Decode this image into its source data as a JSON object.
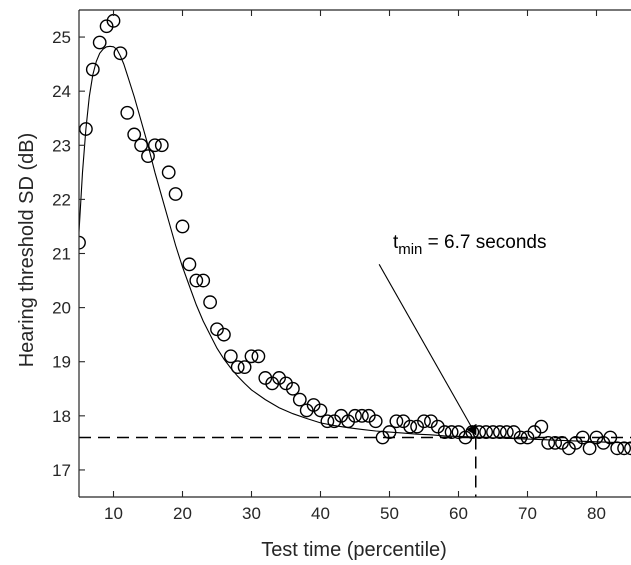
{
  "chart_data": {
    "type": "scatter",
    "xlabel": "Test time (percentile)",
    "ylabel": "Hearing threshold SD (dB)",
    "xlim": [
      5,
      85
    ],
    "ylim": [
      16.5,
      25.5
    ],
    "xticks": [
      10,
      20,
      30,
      40,
      50,
      60,
      70,
      80
    ],
    "yticks": [
      17,
      18,
      19,
      20,
      21,
      22,
      23,
      24,
      25
    ],
    "grid": false,
    "series": [
      {
        "kind": "markers",
        "marker": "open-circle",
        "x": [
          5,
          6,
          7,
          8,
          9,
          10,
          11,
          12,
          13,
          14,
          15,
          16,
          17,
          18,
          19,
          20,
          21,
          22,
          23,
          24,
          25,
          26,
          27,
          28,
          29,
          30,
          31,
          32,
          33,
          34,
          35,
          36,
          37,
          38,
          39,
          40,
          41,
          42,
          43,
          44,
          45,
          46,
          47,
          48,
          49,
          50,
          51,
          52,
          53,
          54,
          55,
          56,
          57,
          58,
          59,
          60,
          61,
          62,
          63,
          64,
          65,
          66,
          67,
          68,
          69,
          70,
          71,
          72,
          73,
          74,
          75,
          76,
          77,
          78,
          79,
          80,
          81,
          82,
          83,
          84,
          85
        ],
        "y": [
          21.2,
          23.3,
          24.4,
          24.9,
          25.2,
          25.3,
          24.7,
          23.6,
          23.2,
          23.0,
          22.8,
          23.0,
          23.0,
          22.5,
          22.1,
          21.5,
          20.8,
          20.5,
          20.5,
          20.1,
          19.6,
          19.5,
          19.1,
          18.9,
          18.9,
          19.1,
          19.1,
          18.7,
          18.6,
          18.7,
          18.6,
          18.5,
          18.3,
          18.1,
          18.2,
          18.1,
          17.9,
          17.9,
          18.0,
          17.9,
          18.0,
          18.0,
          18.0,
          17.9,
          17.6,
          17.7,
          17.9,
          17.9,
          17.8,
          17.8,
          17.9,
          17.9,
          17.8,
          17.7,
          17.7,
          17.7,
          17.6,
          17.7,
          17.7,
          17.7,
          17.7,
          17.7,
          17.7,
          17.7,
          17.6,
          17.6,
          17.7,
          17.8,
          17.5,
          17.5,
          17.5,
          17.4,
          17.5,
          17.6,
          17.4,
          17.6,
          17.5,
          17.6,
          17.4,
          17.4,
          17.4
        ]
      },
      {
        "kind": "fit-line",
        "x": [
          5,
          5.5,
          6,
          6.5,
          7,
          7.5,
          8,
          8.5,
          9,
          9.5,
          10,
          10.5,
          11,
          11.5,
          12,
          13,
          14,
          15,
          16,
          17,
          18,
          19,
          20,
          21,
          22,
          23,
          24,
          25,
          26,
          27,
          28,
          29,
          30,
          32,
          34,
          36,
          38,
          40,
          42,
          44,
          46,
          48,
          50,
          52,
          54,
          56,
          58,
          60,
          62,
          64,
          66,
          68,
          70,
          72,
          74,
          76,
          78,
          80,
          82,
          85
        ],
        "y": [
          21.4,
          22.5,
          23.3,
          23.9,
          24.3,
          24.55,
          24.7,
          24.78,
          24.82,
          24.83,
          24.82,
          24.77,
          24.65,
          24.5,
          24.3,
          23.9,
          23.45,
          23.0,
          22.5,
          22.05,
          21.6,
          21.15,
          20.75,
          20.4,
          20.05,
          19.75,
          19.5,
          19.25,
          19.05,
          18.88,
          18.73,
          18.6,
          18.48,
          18.3,
          18.15,
          18.04,
          17.95,
          17.87,
          17.82,
          17.78,
          17.75,
          17.72,
          17.7,
          17.68,
          17.66,
          17.65,
          17.63,
          17.62,
          17.61,
          17.6,
          17.59,
          17.58,
          17.57,
          17.56,
          17.55,
          17.54,
          17.53,
          17.52,
          17.51,
          17.5
        ]
      }
    ],
    "reference_lines": {
      "horizontal_y": 17.6,
      "vertical_x": 62.5
    },
    "annotation": {
      "text_t": "t",
      "text_sub": "min",
      "text_rest": " = 6.7 seconds",
      "label_x": 50.5,
      "label_y": 21.1,
      "arrow_tail": [
        48.5,
        20.8
      ],
      "arrow_head": [
        62.5,
        17.6
      ]
    }
  }
}
